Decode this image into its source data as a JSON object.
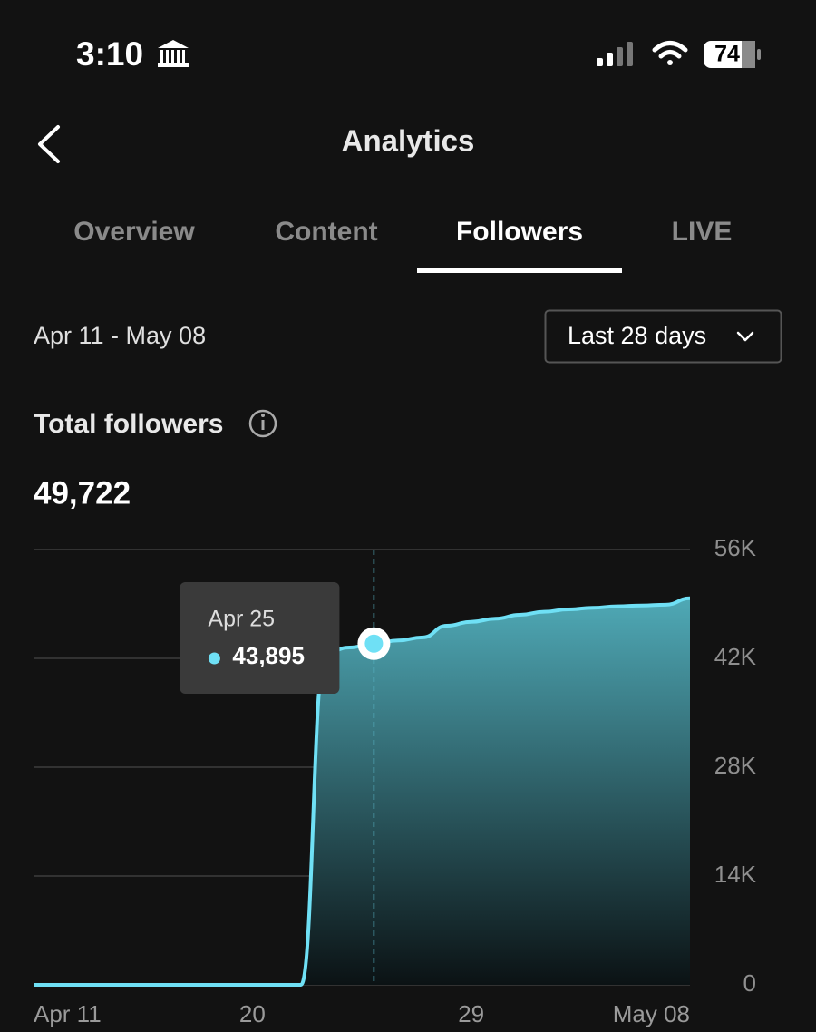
{
  "status_bar": {
    "time": "3:10",
    "battery": "74"
  },
  "header": {
    "title": "Analytics"
  },
  "tabs": [
    "Overview",
    "Content",
    "Followers",
    "LIVE"
  ],
  "active_tab": "Followers",
  "date_range": "Apr 11 - May 08",
  "period_selector": "Last 28 days",
  "summary": {
    "label": "Total followers",
    "value": "49,722"
  },
  "chart_data": {
    "type": "area",
    "categories": [
      "Apr 11",
      null,
      null,
      null,
      null,
      null,
      null,
      null,
      null,
      "20",
      null,
      null,
      null,
      null,
      null,
      null,
      null,
      null,
      "29",
      null,
      null,
      null,
      null,
      null,
      null,
      null,
      null,
      "May 08"
    ],
    "series": [
      {
        "color": "#6fe0f5",
        "values": [
          0,
          0,
          0,
          0,
          0,
          0,
          0,
          0,
          0,
          0,
          0,
          0,
          42700,
          43400,
          43895,
          44300,
          44700,
          46200,
          46700,
          47100,
          47600,
          48000,
          48300,
          48500,
          48700,
          48800,
          48900,
          49722
        ],
        "value_labels": [
          null,
          null,
          null,
          null,
          null,
          null,
          null,
          null,
          null,
          null,
          null,
          null,
          null,
          null,
          "43,895",
          null,
          null,
          null,
          null,
          null,
          null,
          null,
          null,
          null,
          null,
          null,
          null,
          null
        ]
      }
    ],
    "tooltip_label": "Apr 25",
    "ylim": [
      0,
      56000
    ],
    "yticks": [
      0,
      {
        "value": 14000,
        "label": "14K"
      },
      {
        "value": 28000,
        "label": "28K"
      },
      {
        "value": 42000,
        "label": "42K"
      },
      {
        "value": 56000,
        "label": "56K"
      }
    ],
    "grid": true
  }
}
